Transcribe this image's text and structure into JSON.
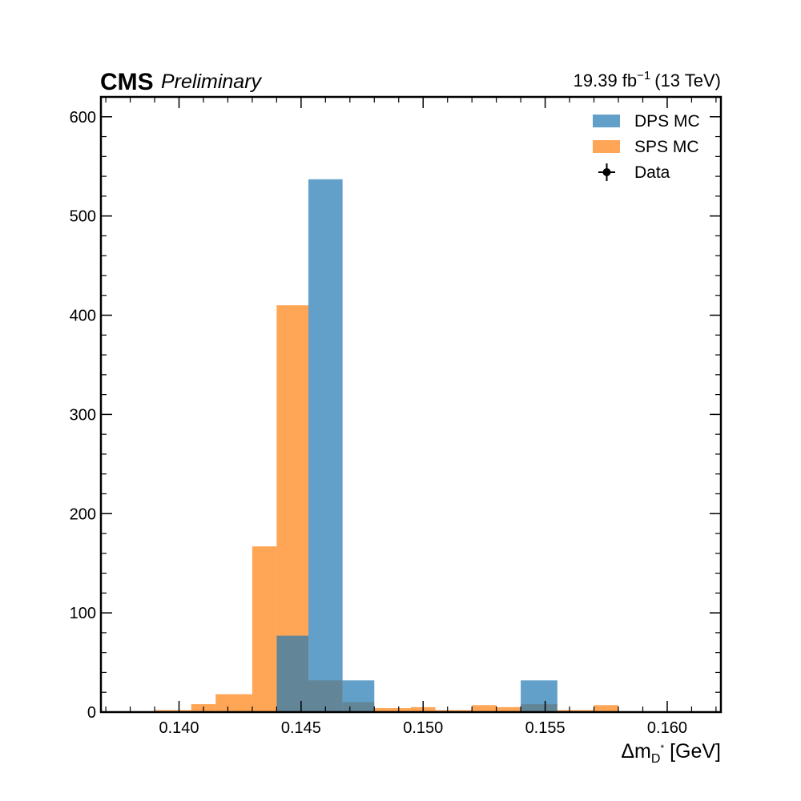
{
  "chart_data": {
    "type": "bar",
    "experiment": "CMS",
    "status": "Preliminary",
    "lumi_value": "19.39 fb",
    "lumi_exponent": "−1",
    "energy": "(13 TeV)",
    "xlabel_main": "Δm",
    "xlabel_sub": "D",
    "xlabel_sup": "*",
    "xlabel_unit": " [GeV]",
    "ylabel": "",
    "xlim": [
      0.1368,
      0.1622
    ],
    "ylim": [
      0,
      620
    ],
    "x_ticks": [
      0.14,
      0.145,
      0.15,
      0.155,
      0.16
    ],
    "x_tick_labels": [
      "0.140",
      "0.145",
      "0.150",
      "0.155",
      "0.160"
    ],
    "y_ticks": [
      0,
      100,
      200,
      300,
      400,
      500,
      600
    ],
    "y_tick_labels": [
      "0",
      "100",
      "200",
      "300",
      "400",
      "500",
      "600"
    ],
    "bin_edges": [
      0.139,
      0.1405,
      0.1415,
      0.143,
      0.144,
      0.1453,
      0.1467,
      0.148,
      0.1495,
      0.1505,
      0.152,
      0.153,
      0.154,
      0.1555,
      0.157,
      0.158,
      0.1593,
      0.1608
    ],
    "legend_position": "top-right",
    "grid": false,
    "series": [
      {
        "name": "DPS MC",
        "color": "#1f77b4",
        "opacity": 0.7,
        "values": [
          0,
          0,
          0,
          0,
          77,
          537,
          32,
          0,
          0,
          0,
          0,
          0,
          32,
          0,
          0,
          0,
          0
        ]
      },
      {
        "name": "SPS MC",
        "color": "#ff7f0e",
        "opacity": 0.7,
        "values": [
          2,
          8,
          18,
          167,
          410,
          32,
          10,
          4,
          5,
          2,
          7,
          5,
          8,
          2,
          7,
          0,
          0
        ]
      },
      {
        "name": "Data",
        "color": "#000000",
        "marker": "errorbar",
        "values": []
      }
    ]
  }
}
